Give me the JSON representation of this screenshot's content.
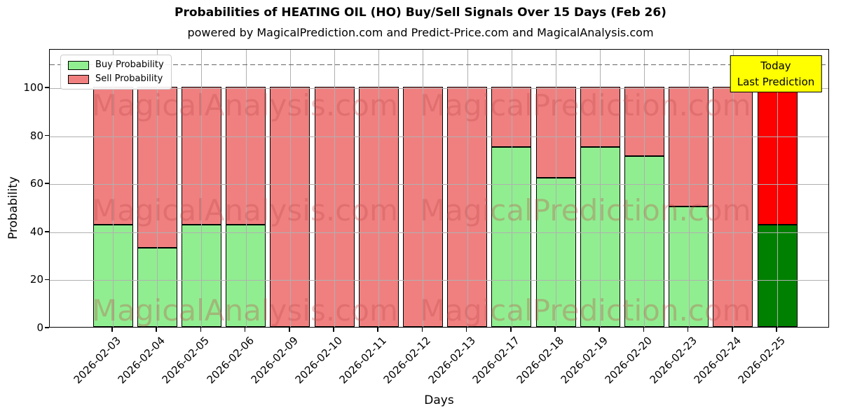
{
  "figure": {
    "title": "Probabilities of HEATING OIL (HO) Buy/Sell Signals Over 15 Days (Feb 26)",
    "subtitle": "powered by MagicalPrediction.com and Predict-Price.com and MagicalAnalysis.com"
  },
  "legend": {
    "items": [
      {
        "label": "Buy Probability",
        "color": "#90EE90"
      },
      {
        "label": "Sell Probability",
        "color": "#F08080"
      }
    ]
  },
  "annotation": {
    "line1": "Today",
    "line2": "Last Prediction",
    "bg_color": "#ffff00"
  },
  "watermarks": {
    "left_text": "MagicalAnalysis.com",
    "right_text": "MagicalPrediction.com",
    "rows": 3
  },
  "chart_data": {
    "type": "bar",
    "stacked": true,
    "title": "Probabilities of HEATING OIL (HO) Buy/Sell Signals Over 15 Days (Feb 26)",
    "xlabel": "Days",
    "ylabel": "Probability",
    "ylim": [
      0,
      116
    ],
    "yticks": [
      0,
      20,
      40,
      60,
      80,
      100
    ],
    "grid": true,
    "legend_position": "upper-left",
    "categories": [
      "2026-02-03",
      "2026-02-04",
      "2026-02-05",
      "2026-02-06",
      "2026-02-09",
      "2026-02-10",
      "2026-02-11",
      "2026-02-12",
      "2026-02-13",
      "2026-02-17",
      "2026-02-18",
      "2026-02-19",
      "2026-02-20",
      "2026-02-23",
      "2026-02-24",
      "2026-02-25"
    ],
    "series": [
      {
        "name": "Buy Probability",
        "color": "#90EE90",
        "values": [
          42.5,
          33,
          42.5,
          42.5,
          0,
          0,
          0,
          0,
          0,
          75,
          62,
          75,
          71,
          50,
          0,
          42.5
        ]
      },
      {
        "name": "Sell Probability",
        "color": "#F08080",
        "values": [
          57.5,
          67,
          57.5,
          57.5,
          100,
          100,
          100,
          100,
          100,
          25,
          38,
          25,
          29,
          50,
          100,
          57.5
        ]
      }
    ],
    "highlight_last": {
      "index": 15,
      "buy_color": "#008000",
      "sell_color": "#FF0000"
    },
    "reference_line": {
      "y": 110,
      "style": "dashed",
      "color": "#666666"
    }
  }
}
